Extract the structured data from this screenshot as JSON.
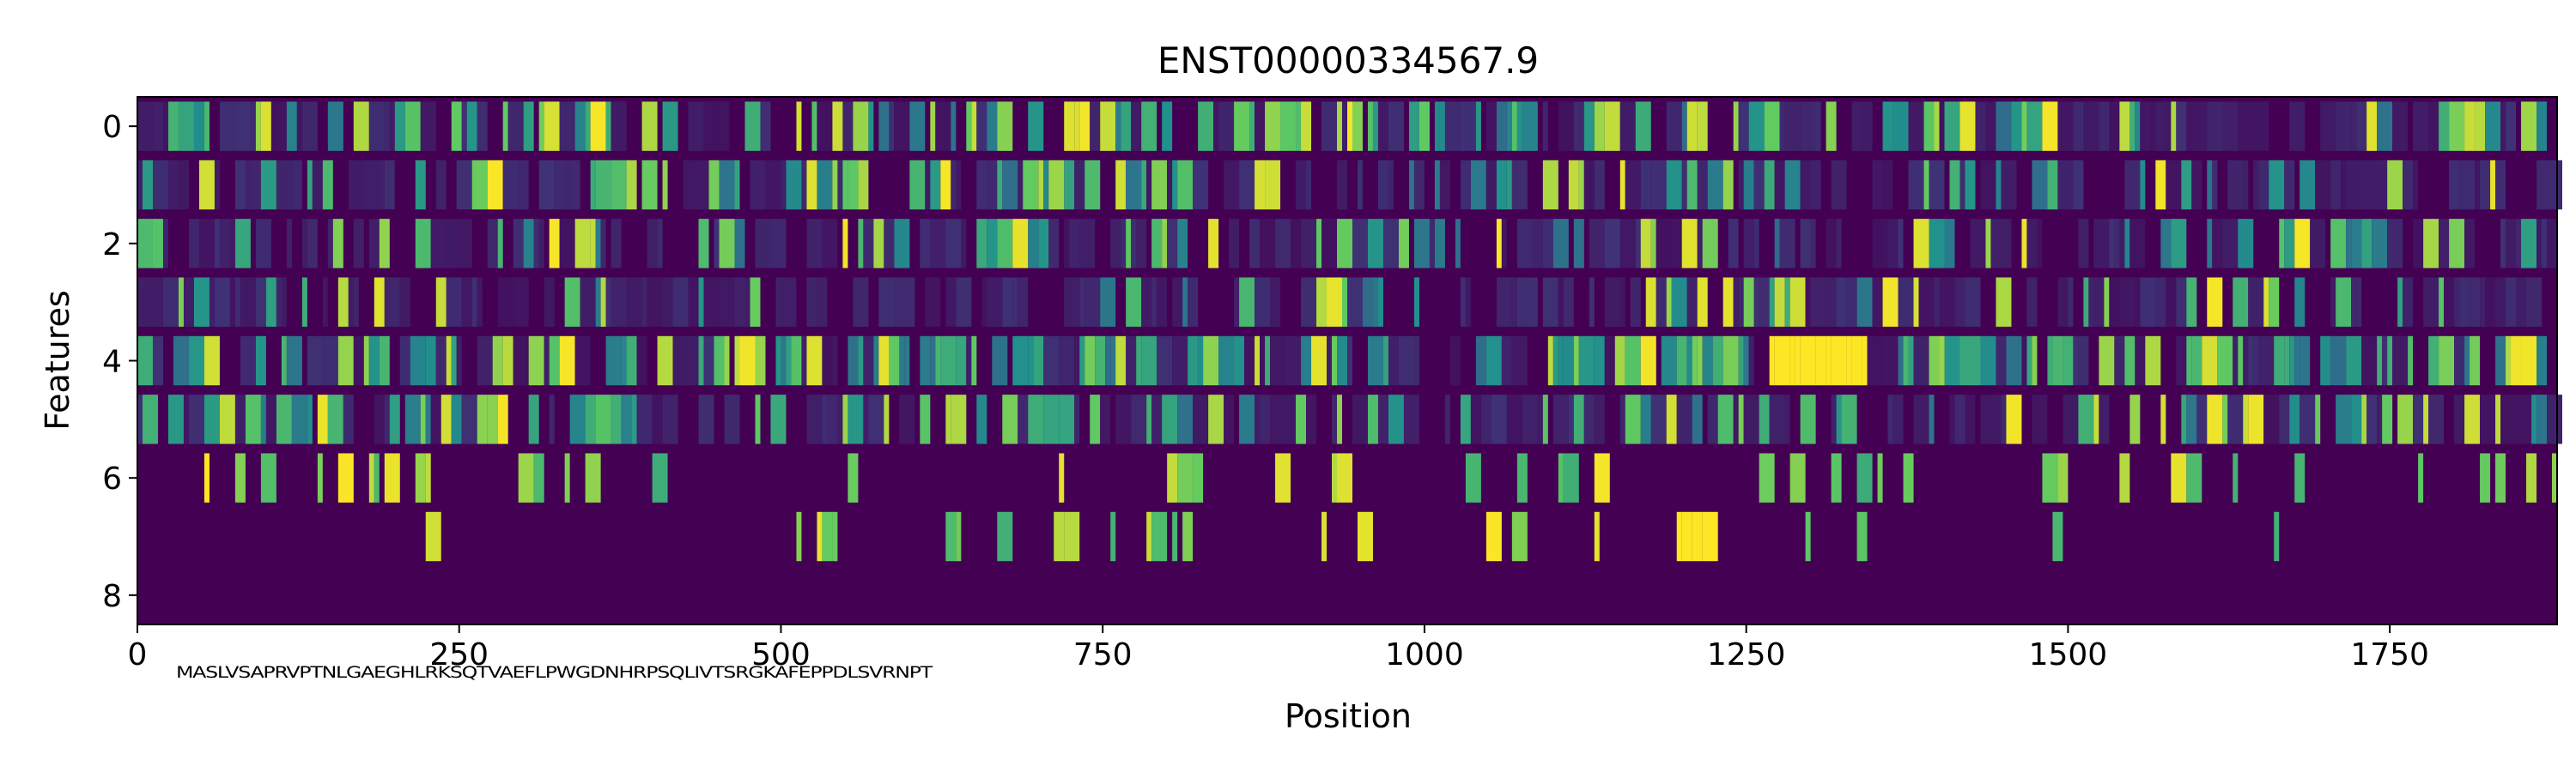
{
  "chart_data": {
    "type": "heatmap",
    "title": "ENST00000334567.9",
    "xlabel": "Position",
    "ylabel": "Features",
    "x_range": [
      0,
      1880
    ],
    "y_range": [
      -0.5,
      8.5
    ],
    "x_ticks": [
      0,
      250,
      500,
      750,
      1000,
      1250,
      1500,
      1750
    ],
    "x_tick_labels": [
      "0",
      "250",
      "500",
      "750",
      "1000",
      "1250",
      "1500",
      "1750"
    ],
    "y_ticks": [
      0,
      2,
      4,
      6,
      8
    ],
    "y_tick_labels": [
      "0",
      "2",
      "4",
      "6",
      "8"
    ],
    "n_positions": 1880,
    "n_features": 9,
    "colormap": "viridis",
    "colormap_stops": [
      "#440154",
      "#3b528b",
      "#21918c",
      "#5ec962",
      "#fde725"
    ],
    "value_range": [
      0,
      1
    ],
    "feature_activity": [
      0.48,
      0.32,
      0.26,
      0.18,
      0.62,
      0.42,
      0.18,
      0.08,
      0.0
    ],
    "notable_regions": [
      {
        "x_start": 1195,
        "x_end": 1225,
        "feature": 7,
        "value": 1.0
      },
      {
        "x_start": 1260,
        "x_end": 1340,
        "feature": 4,
        "value": 1.0
      }
    ],
    "sequence_annotation": "MASLVSAPRVPTNLGAEGHLRKSQTVAEFLPWGDNHRPSQLIVTSRGKAFEPPDLSVRNPT"
  }
}
